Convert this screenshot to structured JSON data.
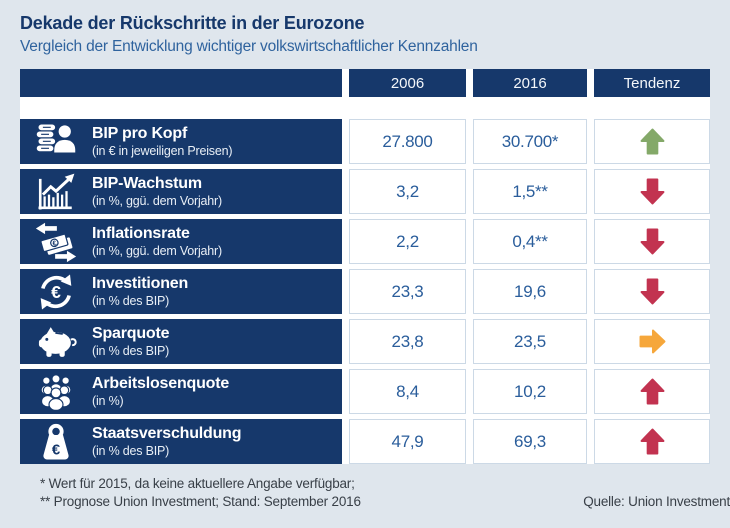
{
  "title": "Dekade der Rückschritte in der Eurozone",
  "subtitle": "Vergleich der Entwicklung wichtiger volkswirtschaftlicher Kennzahlen",
  "chart_data": {
    "type": "table",
    "columns": [
      "",
      "2006",
      "2016",
      "Tendenz"
    ],
    "rows": [
      {
        "indicator": "BIP pro Kopf",
        "unit": "(in € in jeweiligen Preisen)",
        "icon": "coins-person-icon",
        "v2006": "27.800",
        "v2016": "30.700*",
        "trend": "up",
        "trend_color": "#84a969"
      },
      {
        "indicator": "BIP-Wachstum",
        "unit": "(in %, ggü. dem Vorjahr)",
        "icon": "growth-chart-icon",
        "v2006": "3,2",
        "v2016": "1,5**",
        "trend": "down",
        "trend_color": "#c23350"
      },
      {
        "indicator": "Inflationsrate",
        "unit": "(in %, ggü. dem Vorjahr)",
        "icon": "money-arrows-icon",
        "v2006": "2,2",
        "v2016": "0,4**",
        "trend": "down",
        "trend_color": "#c23350"
      },
      {
        "indicator": "Investitionen",
        "unit": "(in % des BIP)",
        "icon": "euro-cycle-icon",
        "v2006": "23,3",
        "v2016": "19,6",
        "trend": "down",
        "trend_color": "#c23350"
      },
      {
        "indicator": "Sparquote",
        "unit": "(in % des BIP)",
        "icon": "piggy-bank-icon",
        "v2006": "23,8",
        "v2016": "23,5",
        "trend": "right",
        "trend_color": "#f6a73b"
      },
      {
        "indicator": "Arbeitslosenquote",
        "unit": "(in %)",
        "icon": "people-group-icon",
        "v2006": "8,4",
        "v2016": "10,2",
        "trend": "up",
        "trend_color": "#c23350"
      },
      {
        "indicator": "Staatsverschuldung",
        "unit": "(in % des BIP)",
        "icon": "money-bag-lock-icon",
        "v2006": "47,9",
        "v2016": "69,3",
        "trend": "up",
        "trend_color": "#c23350"
      }
    ]
  },
  "footnotes": [
    "* Wert für 2015, da keine aktuellere Angabe verfügbar;",
    "** Prognose Union Investment; Stand: September 2016"
  ],
  "source": "Quelle: Union Investment",
  "colors": {
    "background": "#dfe6ed",
    "navy": "#16386b",
    "value_blue": "#2a5d9b",
    "grid_line": "#ccd9e6",
    "trend_up_good": "#84a969",
    "trend_bad": "#c23350",
    "trend_neutral": "#f6a73b"
  }
}
